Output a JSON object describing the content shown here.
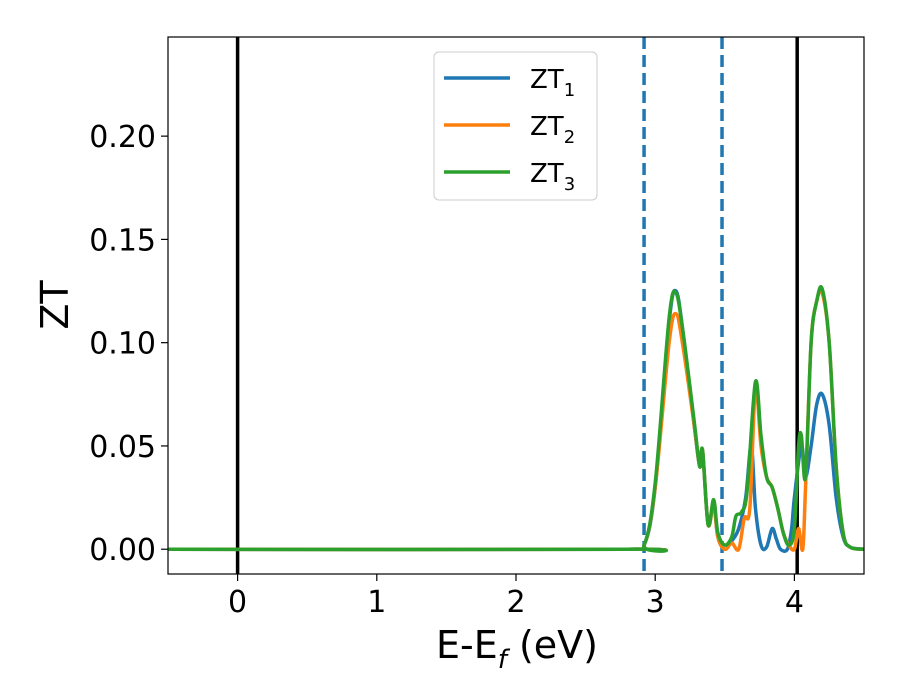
{
  "chart_data": {
    "type": "line",
    "title": "",
    "xlabel": "E-E",
    "xlabel_sub": "f",
    "xlabel_unit": " (eV)",
    "ylabel": "ZT",
    "xlim": [
      -0.5,
      4.5
    ],
    "ylim": [
      -0.012,
      0.248
    ],
    "xticks": [
      0,
      1,
      2,
      3,
      4
    ],
    "yticks": [
      0.0,
      0.05,
      0.1,
      0.15,
      0.2
    ],
    "xtick_labels": [
      "0",
      "1",
      "2",
      "3",
      "4"
    ],
    "ytick_labels": [
      "0.00",
      "0.05",
      "0.10",
      "0.15",
      "0.20"
    ],
    "grid": false,
    "legend_position": "top-center",
    "vertical_lines": [
      {
        "x": 0.0,
        "style": "solid",
        "color": "#000000"
      },
      {
        "x": 4.02,
        "style": "solid",
        "color": "#000000"
      },
      {
        "x": 2.92,
        "style": "dashed",
        "color": "#1f77b4"
      },
      {
        "x": 3.48,
        "style": "dashed",
        "color": "#1f77b4"
      }
    ],
    "series": [
      {
        "name": "ZT",
        "subscript": "1",
        "color": "#1f77b4",
        "x": [
          -0.5,
          2.8,
          2.92,
          3.0,
          3.1,
          3.15,
          3.2,
          3.28,
          3.32,
          3.34,
          3.38,
          3.42,
          3.45,
          3.5,
          3.55,
          3.6,
          3.65,
          3.69,
          3.72,
          3.76,
          3.8,
          3.84,
          3.87,
          3.9,
          3.95,
          3.98,
          4.0,
          4.05,
          4.08,
          4.12,
          4.16,
          4.2,
          4.25,
          4.3,
          4.35,
          4.4,
          4.5
        ],
        "y": [
          0,
          0,
          0.002,
          0.03,
          0.11,
          0.125,
          0.105,
          0.06,
          0.04,
          0.048,
          0.012,
          0.022,
          0.006,
          0.0,
          0.004,
          0.01,
          0.025,
          0.05,
          0.02,
          0.002,
          0.001,
          0.01,
          0.005,
          0.0,
          0.0,
          0.01,
          0.025,
          0.05,
          0.035,
          0.05,
          0.07,
          0.075,
          0.06,
          0.025,
          0.006,
          0.001,
          0.0
        ]
      },
      {
        "name": "ZT",
        "subscript": "2",
        "color": "#ff7f0e",
        "x": [
          -0.5,
          2.8,
          2.92,
          3.0,
          3.1,
          3.15,
          3.2,
          3.28,
          3.32,
          3.34,
          3.38,
          3.42,
          3.45,
          3.5,
          3.55,
          3.6,
          3.64,
          3.68,
          3.72,
          3.76,
          3.8,
          3.84,
          3.88,
          3.92,
          3.96,
          4.0,
          4.03,
          4.06,
          4.08,
          4.12,
          4.16,
          4.2,
          4.25,
          4.3,
          4.35,
          4.4,
          4.5
        ],
        "y": [
          0,
          0,
          0.002,
          0.03,
          0.1,
          0.114,
          0.098,
          0.06,
          0.04,
          0.048,
          0.012,
          0.022,
          0.006,
          0.0,
          0.003,
          0.0,
          0.015,
          0.02,
          0.078,
          0.05,
          0.035,
          0.03,
          0.02,
          0.008,
          0.002,
          0.0,
          0.01,
          0.0,
          0.03,
          0.1,
          0.12,
          0.124,
          0.1,
          0.04,
          0.008,
          0.001,
          0.0
        ]
      },
      {
        "name": "ZT",
        "subscript": "3",
        "color": "#2ca02c",
        "x": [
          -0.5,
          2.8,
          2.92,
          3.0,
          3.1,
          3.15,
          3.2,
          3.28,
          3.32,
          3.34,
          3.38,
          3.42,
          3.45,
          3.5,
          3.55,
          3.58,
          3.62,
          3.66,
          3.72,
          3.76,
          3.8,
          3.84,
          3.88,
          3.92,
          3.96,
          4.0,
          4.03,
          4.05,
          4.08,
          4.12,
          4.16,
          4.2,
          4.25,
          4.3,
          4.35,
          4.4,
          4.5
        ],
        "y": [
          0,
          0,
          0.002,
          0.032,
          0.112,
          0.124,
          0.105,
          0.062,
          0.04,
          0.048,
          0.012,
          0.024,
          0.008,
          0.002,
          0.006,
          0.016,
          0.018,
          0.028,
          0.081,
          0.055,
          0.035,
          0.03,
          0.02,
          0.008,
          0.002,
          0.01,
          0.05,
          0.055,
          0.035,
          0.1,
          0.12,
          0.126,
          0.1,
          0.04,
          0.008,
          0.001,
          0.0
        ]
      }
    ]
  }
}
